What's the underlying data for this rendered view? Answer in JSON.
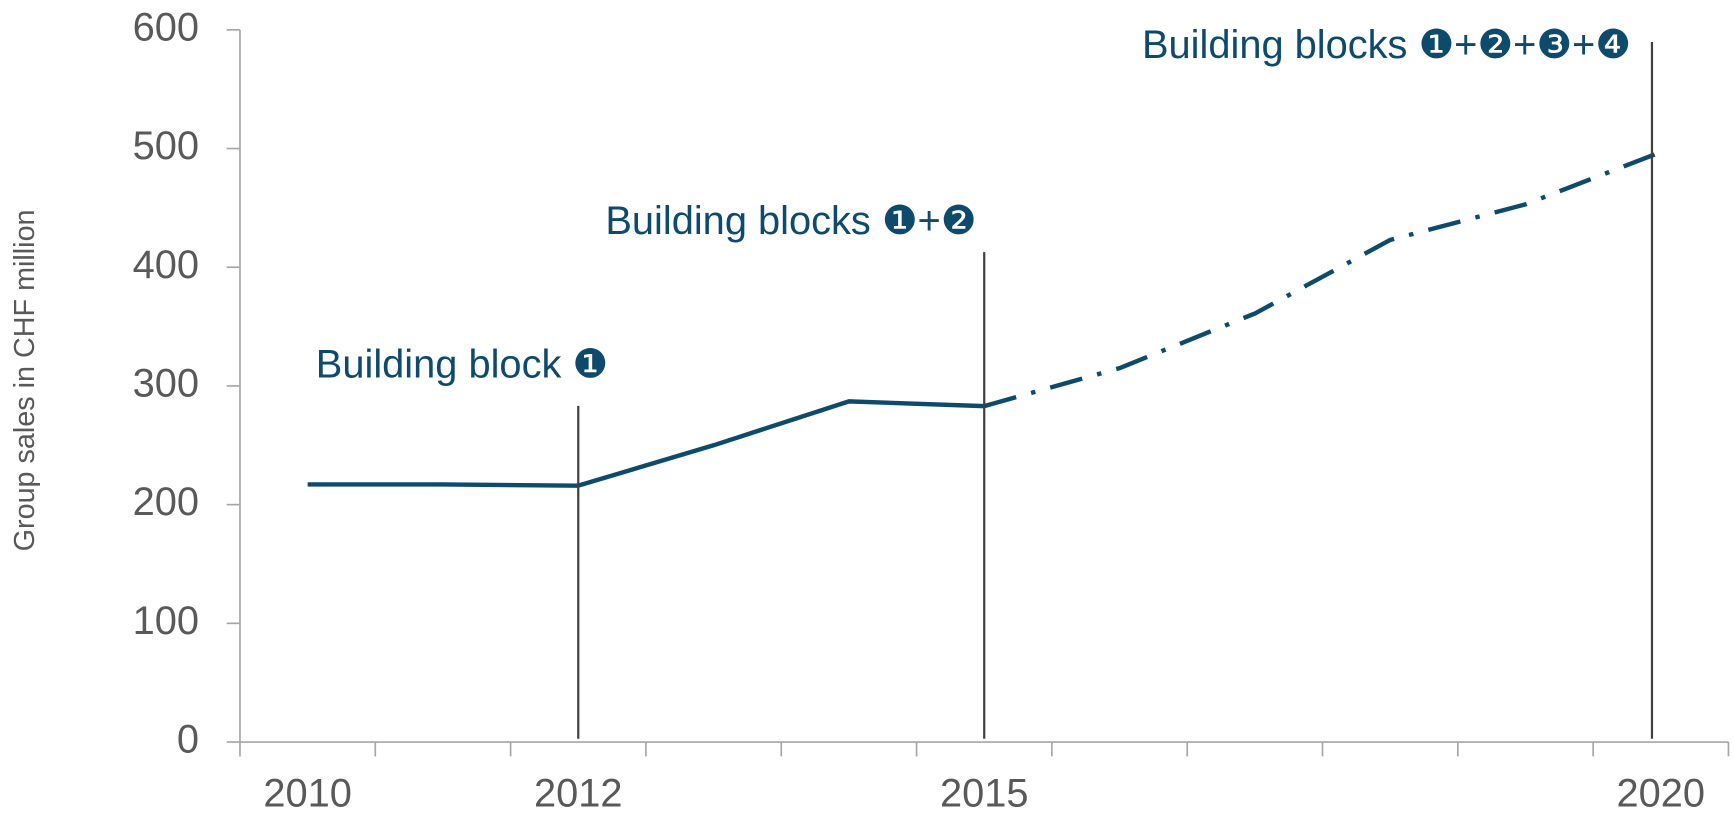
{
  "chart_data": {
    "type": "line",
    "y_label": "Group sales in CHF million",
    "categories": [
      "2010",
      null,
      "2012",
      null,
      null,
      "2015",
      null,
      null,
      null,
      null,
      "2020"
    ],
    "series": [
      {
        "color": "#0d4a6b",
        "line_style": "solid",
        "values": [
          217,
          217,
          216,
          250,
          287,
          283,
          null,
          null,
          null,
          null,
          null
        ]
      },
      {
        "color": "#0d4a6b",
        "line_style": "dashdot",
        "values": [
          null,
          null,
          null,
          null,
          null,
          283,
          315,
          361,
          423,
          453,
          497
        ]
      }
    ],
    "ylim": [
      0,
      600
    ],
    "yticks": [
      0,
      100,
      200,
      300,
      400,
      500,
      600
    ],
    "grid": false,
    "annotations": [
      {
        "text": "Building block ❶",
        "at": "2012"
      },
      {
        "text": "Building blocks ❶+❷",
        "at": "2015"
      },
      {
        "text": "Building blocks ❶+❷+❸+❹",
        "at": "2020"
      }
    ]
  }
}
